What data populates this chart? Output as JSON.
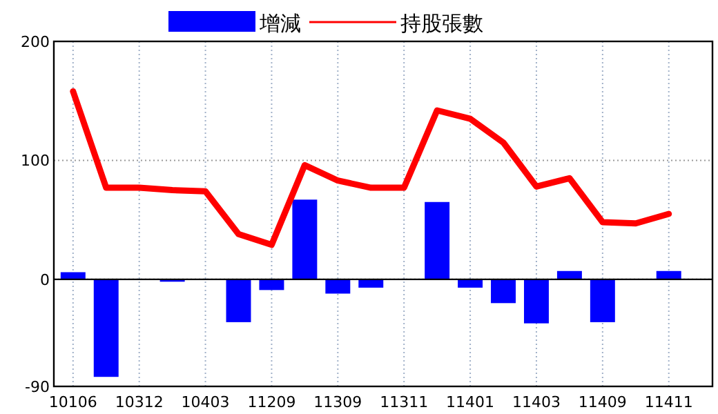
{
  "chart_data": {
    "type": "bar",
    "categories": [
      "10106",
      null,
      "10312",
      null,
      "10403",
      null,
      "11209",
      null,
      "11309",
      null,
      "11311",
      null,
      "11401",
      null,
      "11403",
      null,
      "11409",
      null,
      "11411"
    ],
    "series": [
      {
        "name": "增減",
        "color": "#0000ff",
        "values": [
          6,
          -82,
          0,
          -2,
          0,
          -36,
          -9,
          67,
          -12,
          -7,
          0,
          65,
          -7,
          -20,
          -37,
          7,
          -36,
          0,
          7
        ]
      },
      {
        "name": "持股張數",
        "type": "line",
        "color": "#ff0000",
        "values": [
          158,
          77,
          77,
          75,
          74,
          38,
          29,
          96,
          83,
          77,
          77,
          142,
          135,
          115,
          78,
          85,
          48,
          47,
          55
        ]
      }
    ],
    "ylim": [
      -90,
      200
    ],
    "yticks": [
      -90,
      0,
      100,
      200
    ],
    "grid": true,
    "legend": "top",
    "ref_lines": [
      {
        "axis": "y",
        "value": 0,
        "color": "#000000"
      }
    ]
  }
}
